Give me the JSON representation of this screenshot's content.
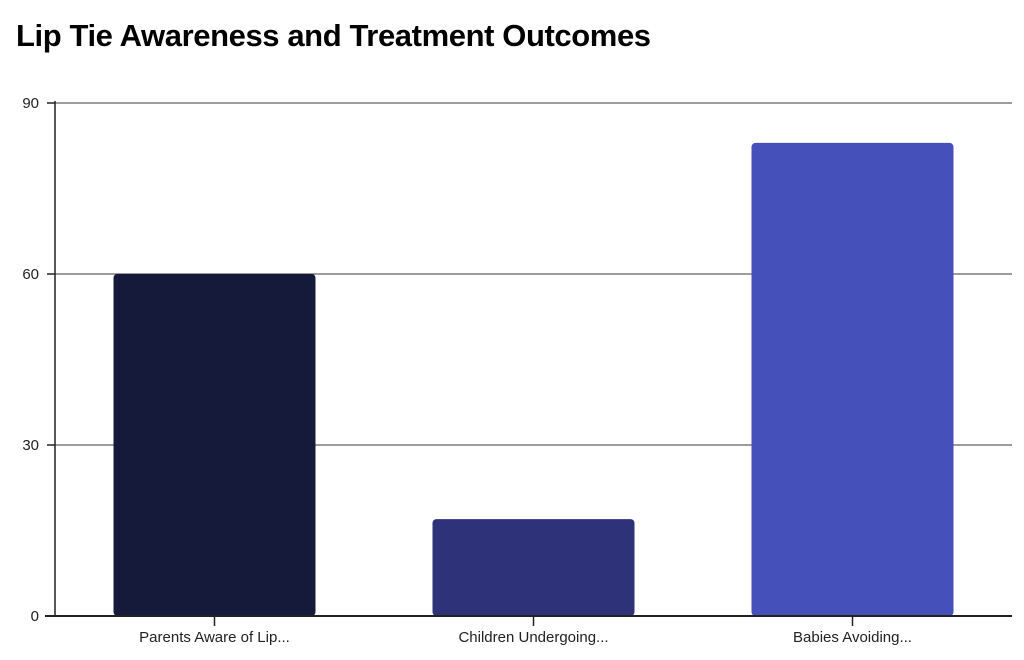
{
  "chart_data": {
    "type": "bar",
    "title": "Lip Tie Awareness and Treatment Outcomes",
    "categories": [
      "Parents Aware of Lip...",
      "Children Undergoing...",
      "Babies Avoiding..."
    ],
    "values": [
      60,
      17,
      83
    ],
    "colors": [
      "#161a3a",
      "#2e3379",
      "#4650ba"
    ],
    "ylim": [
      0,
      90
    ],
    "yticks": [
      0,
      30,
      60,
      90
    ],
    "ytick_labels": [
      "0",
      "30",
      "60",
      "90"
    ],
    "xlabel": "",
    "ylabel": "",
    "grid": true,
    "legend": "none"
  }
}
